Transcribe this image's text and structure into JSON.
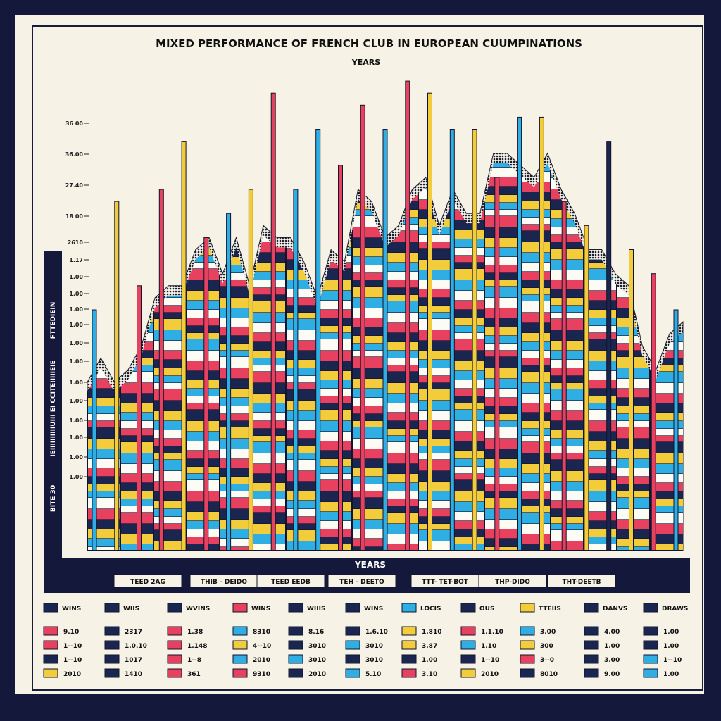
{
  "chart_data": {
    "type": "area",
    "title": "MIXED PERFORMANCE OF FRENCH CLUB IN EUROPEAN CUUMPINATIONS",
    "subtitle": "YEARS",
    "xlabel": "YEARS",
    "ylabel": "IEIIIIIIIIIIUIII EI CCITEIIIIIEIE",
    "side_label_top": "FTTEDIEIN",
    "side_label_bottom": "BITE 30",
    "y_ticks": [
      "36 00",
      "36.00",
      "27.40",
      "18 00",
      "2610",
      "1.17",
      "1.00",
      "1.00",
      "1.00",
      "1.00",
      "1.00",
      "1.00",
      "1.00",
      "1.00",
      "1.00",
      "1.00",
      "1.00",
      "1.00"
    ],
    "ylim": [
      0,
      36
    ],
    "grid": false,
    "x_range_labels": [
      "TEED 2AG",
      "THIB - DEIDO",
      "TEED EEDB",
      "TEH - DEETO",
      "TTT- TET-BOT",
      "THP-DIDO",
      "THT-DEETB"
    ],
    "series_colors": [
      "#e8415f",
      "#1b2650",
      "#f2cc3a",
      "#2eaee3",
      "#fdfcf4"
    ],
    "envelope": [
      14,
      16,
      14,
      15,
      17,
      21,
      22,
      22,
      25,
      26,
      23,
      26,
      22,
      27,
      26,
      26,
      24,
      21,
      25,
      24,
      30,
      29,
      26,
      27,
      30,
      31,
      27,
      30,
      28,
      28,
      33,
      33,
      32,
      31,
      33,
      30,
      28,
      25,
      25,
      23,
      22,
      17,
      15,
      18,
      19
    ],
    "spikes": [
      {
        "value": 20,
        "color": "#2eaee3"
      },
      {
        "value": 29,
        "color": "#f2cc3a"
      },
      {
        "value": 22,
        "color": "#e8415f"
      },
      {
        "value": 30,
        "color": "#e8415f"
      },
      {
        "value": 34,
        "color": "#f2cc3a"
      },
      {
        "value": 26,
        "color": "#e8415f"
      },
      {
        "value": 28,
        "color": "#2eaee3"
      },
      {
        "value": 30,
        "color": "#f2cc3a"
      },
      {
        "value": 38,
        "color": "#e8415f"
      },
      {
        "value": 30,
        "color": "#2eaee3"
      },
      {
        "value": 35,
        "color": "#2eaee3"
      },
      {
        "value": 32,
        "color": "#e8415f"
      },
      {
        "value": 37,
        "color": "#e8415f"
      },
      {
        "value": 35,
        "color": "#2eaee3"
      },
      {
        "value": 39,
        "color": "#e8415f"
      },
      {
        "value": 38,
        "color": "#f2cc3a"
      },
      {
        "value": 35,
        "color": "#2eaee3"
      },
      {
        "value": 35,
        "color": "#f2cc3a"
      },
      {
        "value": 31,
        "color": "#e8415f"
      },
      {
        "value": 36,
        "color": "#2eaee3"
      },
      {
        "value": 36,
        "color": "#f2cc3a"
      },
      {
        "value": 29,
        "color": "#e8415f"
      },
      {
        "value": 27,
        "color": "#f2cc3a"
      },
      {
        "value": 34,
        "color": "#1b2650"
      },
      {
        "value": 25,
        "color": "#f2cc3a"
      },
      {
        "value": 23,
        "color": "#e8415f"
      },
      {
        "value": 20,
        "color": "#2eaee3"
      }
    ],
    "legend": [
      "WINS",
      "WIIS",
      "WVINS",
      "WINS",
      "WIIIS",
      "WINS",
      "LOCIS",
      "OUS",
      "TTEIIS",
      "DANVS",
      "DRAWS"
    ],
    "legend_colors": [
      "#1b2650",
      "#1b2650",
      "#1b2650",
      "#e8415f",
      "#1b2650",
      "#1b2650",
      "#2eaee3",
      "#1b2650",
      "#f2cc3a",
      "#1b2650",
      "#1b2650"
    ],
    "table": [
      [
        {
          "c": "#e8415f",
          "t": "9.10"
        },
        {
          "c": "#1b2650",
          "t": "2317"
        },
        {
          "c": "#e8415f",
          "t": "1.38"
        },
        {
          "c": "#2eaee3",
          "t": "8310"
        },
        {
          "c": "#1b2650",
          "t": "8.16"
        },
        {
          "c": "#1b2650",
          "t": "1.6.10"
        },
        {
          "c": "#f2cc3a",
          "t": "1.810"
        },
        {
          "c": "#e8415f",
          "t": "1.1.10"
        },
        {
          "c": "#2eaee3",
          "t": "3.00"
        },
        {
          "c": "#1b2650",
          "t": "4.00"
        },
        {
          "c": "#1b2650",
          "t": "1.00"
        }
      ],
      [
        {
          "c": "#e8415f",
          "t": "1--10"
        },
        {
          "c": "#1b2650",
          "t": "1.0.10"
        },
        {
          "c": "#e8415f",
          "t": "1.148"
        },
        {
          "c": "#f2cc3a",
          "t": "4--10"
        },
        {
          "c": "#1b2650",
          "t": "3010"
        },
        {
          "c": "#2eaee3",
          "t": "3010"
        },
        {
          "c": "#f2cc3a",
          "t": "3.87"
        },
        {
          "c": "#2eaee3",
          "t": "1.10"
        },
        {
          "c": "#f2cc3a",
          "t": "300"
        },
        {
          "c": "#1b2650",
          "t": "1.00"
        },
        {
          "c": "#1b2650",
          "t": "1.00"
        }
      ],
      [
        {
          "c": "#1b2650",
          "t": "1--10"
        },
        {
          "c": "#1b2650",
          "t": "1017"
        },
        {
          "c": "#e8415f",
          "t": "1--8"
        },
        {
          "c": "#2eaee3",
          "t": "2010"
        },
        {
          "c": "#2eaee3",
          "t": "3010"
        },
        {
          "c": "#1b2650",
          "t": "3010"
        },
        {
          "c": "#1b2650",
          "t": "1.00"
        },
        {
          "c": "#1b2650",
          "t": "1--10"
        },
        {
          "c": "#e8415f",
          "t": "3--0"
        },
        {
          "c": "#1b2650",
          "t": "3.00"
        },
        {
          "c": "#2eaee3",
          "t": "1--10"
        }
      ],
      [
        {
          "c": "#f2cc3a",
          "t": "2010"
        },
        {
          "c": "#1b2650",
          "t": "1410"
        },
        {
          "c": "#e8415f",
          "t": "361"
        },
        {
          "c": "#e8415f",
          "t": "9310"
        },
        {
          "c": "#1b2650",
          "t": "2010"
        },
        {
          "c": "#2eaee3",
          "t": "5.10"
        },
        {
          "c": "#e8415f",
          "t": "3.10"
        },
        {
          "c": "#f2cc3a",
          "t": "2010"
        },
        {
          "c": "#1b2650",
          "t": "8010"
        },
        {
          "c": "#1b2650",
          "t": "9.00"
        },
        {
          "c": "#2eaee3",
          "t": "1.00"
        }
      ]
    ]
  }
}
